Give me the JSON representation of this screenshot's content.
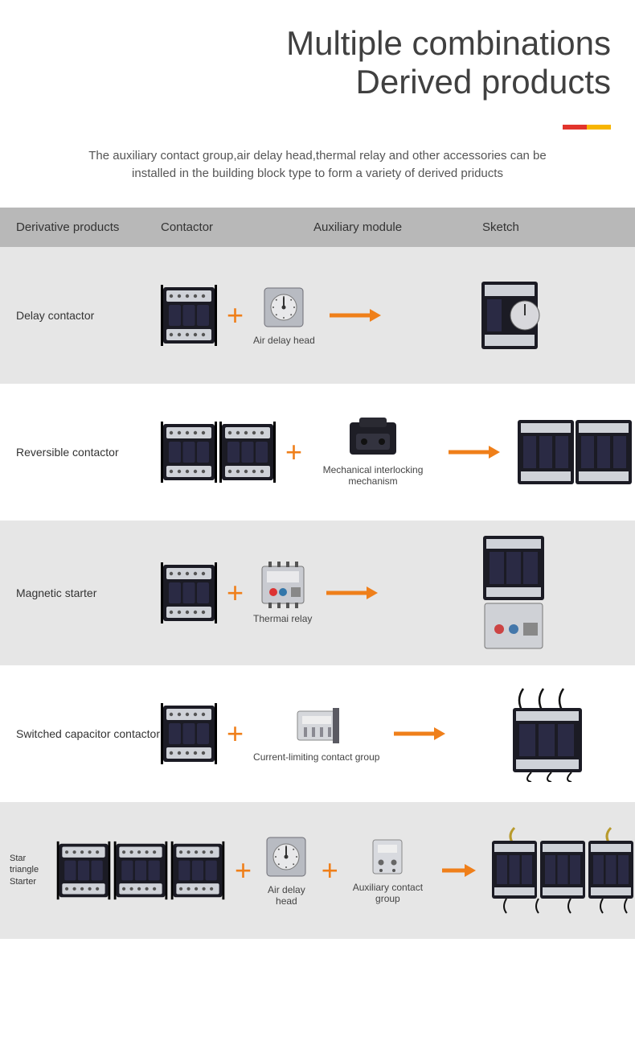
{
  "colors": {
    "orange": "#ef7f1a",
    "red": "#e2342c",
    "yellow": "#f7b500",
    "headerGray": "#b8b8b8",
    "rowAlt": "#e6e6e6",
    "deviceBody": "#1b1b24",
    "devicePanel": "#2a2a44",
    "deviceLight": "#cfd2d8",
    "textDark": "#3a3a3a"
  },
  "title_line1": "Multiple combinations",
  "title_line2": "Derived products",
  "intro_line1": "The auxiliary contact group,air delay head,thermal relay and other accessories can be",
  "intro_line2": "installed in the building block type to form a variety of derived priducts",
  "columns": {
    "c1": "Derivative products",
    "c2": "Contactor",
    "c3": "Auxiliary module",
    "c4": "Sketch"
  },
  "rows": [
    {
      "label": "Delay contactor",
      "contactor_count": 1,
      "modules": [
        {
          "caption": "Air delay head",
          "type": "dial"
        }
      ],
      "sketch_type": "contactor_with_dial",
      "alt": true
    },
    {
      "label": "Reversible contactor",
      "contactor_count": 2,
      "modules": [
        {
          "caption": "Mechanical interlocking mechanism",
          "type": "interlock"
        }
      ],
      "sketch_type": "double_contactor",
      "alt": false
    },
    {
      "label": "Magnetic starter",
      "contactor_count": 1,
      "modules": [
        {
          "caption": "Thermai relay",
          "type": "relay"
        }
      ],
      "sketch_type": "contactor_with_relay",
      "alt": true
    },
    {
      "label": "Switched capacitor contactor",
      "contactor_count": 1,
      "modules": [
        {
          "caption": "Current-limiting contact group",
          "type": "limiter"
        }
      ],
      "sketch_type": "capacitor_contactor",
      "alt": false
    },
    {
      "label": "Star triangle Starter",
      "contactor_count": 3,
      "modules": [
        {
          "caption": "Air delay head",
          "type": "dial"
        },
        {
          "caption": "Auxiliary contact group",
          "type": "auxblock"
        }
      ],
      "sketch_type": "triple_assembly",
      "alt": true,
      "narrow": true
    }
  ]
}
